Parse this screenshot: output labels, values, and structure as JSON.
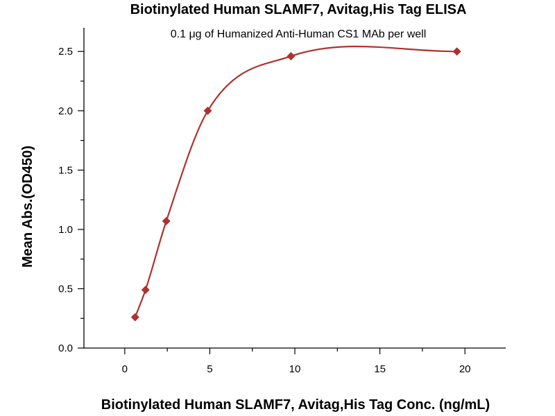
{
  "chart_data": {
    "type": "scatter",
    "title": "Biotinylated Human SLAMF7, Avitag,His Tag ELISA",
    "subtitle": "0.1 μg of Humanized Anti-Human CS1 MAb per well",
    "xlabel": "Biotinylated Human SLAMF7, Avitag,His Tag Conc. (ng/mL)",
    "ylabel": "Mean Abs.(OD450)",
    "xlim": [
      -2.4,
      22.4
    ],
    "ylim": [
      0,
      2.7
    ],
    "x_ticks": [
      0,
      5,
      10,
      15,
      20
    ],
    "y_ticks": [
      0.0,
      0.5,
      1.0,
      1.5,
      2.0,
      2.5
    ],
    "x_tick_labels": [
      "0",
      "5",
      "10",
      "15",
      "20"
    ],
    "y_tick_labels": [
      "0.0",
      "0.5",
      "1.0",
      "1.5",
      "2.0",
      "2.5"
    ],
    "grid": false,
    "series": [
      {
        "color": "#b0312d",
        "marker": "diamond",
        "fit_line": true,
        "x": [
          0.61,
          1.22,
          2.44,
          4.88,
          9.77,
          19.53
        ],
        "y": [
          0.26,
          0.49,
          1.07,
          2.0,
          2.46,
          2.5
        ]
      }
    ]
  }
}
